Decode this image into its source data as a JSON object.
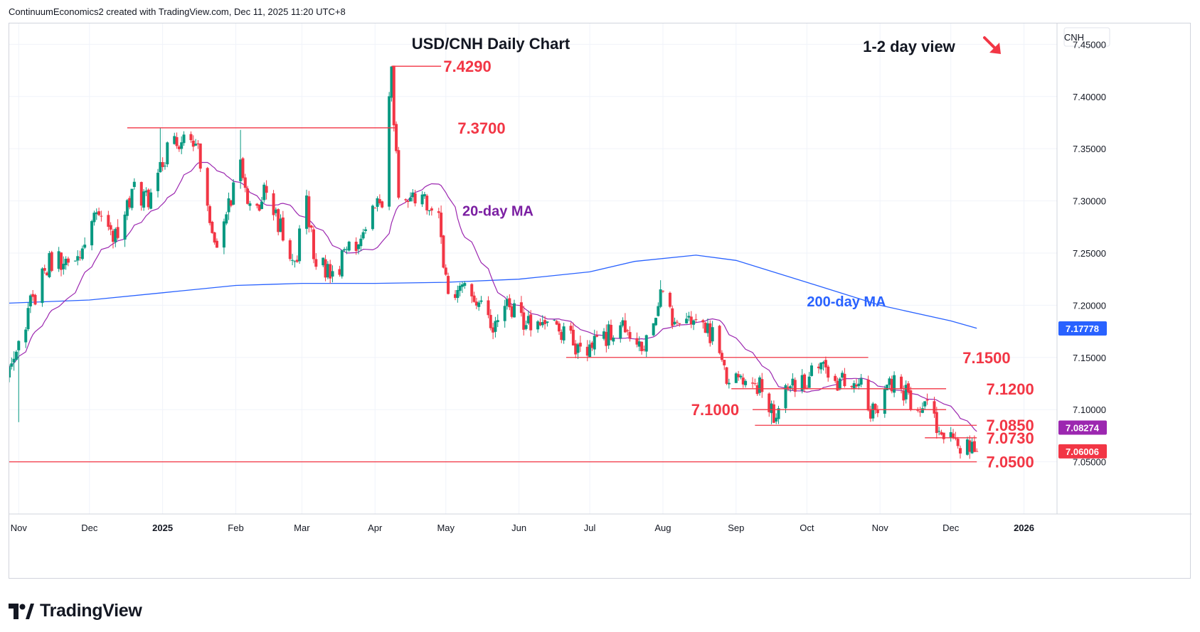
{
  "header": {
    "attribution": "ContinuumEconomics2 created with TradingView.com, Dec 11, 2025 11:20 UTC+8"
  },
  "brand": {
    "name": "TradingView"
  },
  "colors": {
    "up": "#089981",
    "down": "#f23645",
    "ma20": "#9c27b0",
    "ma200": "#2962ff",
    "level_line": "#f23645",
    "level_text": "#f23645",
    "annot_text": "#131722"
  },
  "chart_data": {
    "type": "candlestick",
    "title": "USD/CNH Daily Chart",
    "symbol": "CNH",
    "view_label": "1-2 day view",
    "view_direction": "down",
    "y_range": [
      7.0,
      7.47
    ],
    "x_range": [
      "2024-10-28",
      "2026-01-15"
    ],
    "y_ticks": [
      "7.45000",
      "7.40000",
      "7.35000",
      "7.30000",
      "7.25000",
      "7.20000",
      "7.15000",
      "7.10000",
      "7.05000"
    ],
    "x_ticks": [
      {
        "label": "Nov",
        "date": "2024-11-01"
      },
      {
        "label": "Dec",
        "date": "2024-12-01"
      },
      {
        "label": "2025",
        "date": "2025-01-01"
      },
      {
        "label": "Feb",
        "date": "2025-02-01"
      },
      {
        "label": "Mar",
        "date": "2025-03-01"
      },
      {
        "label": "Apr",
        "date": "2025-04-01"
      },
      {
        "label": "May",
        "date": "2025-05-01"
      },
      {
        "label": "Jun",
        "date": "2025-06-01"
      },
      {
        "label": "Jul",
        "date": "2025-07-01"
      },
      {
        "label": "Aug",
        "date": "2025-08-01"
      },
      {
        "label": "Sep",
        "date": "2025-09-01"
      },
      {
        "label": "Oct",
        "date": "2025-10-01"
      },
      {
        "label": "Nov",
        "date": "2025-11-01"
      },
      {
        "label": "Dec",
        "date": "2025-12-01"
      },
      {
        "label": "2026",
        "date": "2026-01-01"
      }
    ],
    "price_badges": [
      {
        "value": "7.17778",
        "color": "#2962ff"
      },
      {
        "value": "7.08274",
        "color": "#9c27b0"
      },
      {
        "value": "7.06006",
        "color": "#f23645"
      }
    ],
    "annotations": [
      {
        "text": "20-day MA",
        "date": "2025-05-08",
        "value": 7.29,
        "color": "#7b1fa2"
      },
      {
        "text": "200-day MA",
        "date": "2025-10-01",
        "value": 7.203,
        "color": "#2962ff"
      }
    ],
    "levels": [
      {
        "value": 7.429,
        "label": "7.4290",
        "from": "2025-04-08",
        "to": "2025-04-29",
        "label_date": "2025-04-30"
      },
      {
        "value": 7.37,
        "label": "7.3700",
        "from": "2024-12-17",
        "to": "2025-04-10",
        "label_date": "2025-05-06"
      },
      {
        "value": 7.15,
        "label": "7.1500",
        "from": "2025-06-21",
        "to": "2025-10-27",
        "label_date": "2025-12-06"
      },
      {
        "value": 7.12,
        "label": "7.1200",
        "from": "2025-08-30",
        "to": "2025-11-29",
        "label_date": "2025-12-16"
      },
      {
        "value": 7.1,
        "label": "7.1000",
        "from": "2025-09-08",
        "to": "2025-11-29",
        "label_date": "2025-08-13"
      },
      {
        "value": 7.085,
        "label": "7.0850",
        "from": "2025-09-09",
        "to": "2025-12-12",
        "label_date": "2025-12-16"
      },
      {
        "value": 7.073,
        "label": "7.0730",
        "from": "2025-11-20",
        "to": "2025-12-12",
        "label_date": "2025-12-16"
      },
      {
        "value": 7.05,
        "label": "7.0500",
        "from": "2024-10-28",
        "to": "2025-12-12",
        "label_date": "2025-12-16"
      }
    ],
    "anchors": [
      {
        "date": "2024-10-28",
        "value": 7.13
      },
      {
        "date": "2024-11-06",
        "value": 7.2
      },
      {
        "date": "2024-11-14",
        "value": 7.24
      },
      {
        "date": "2024-11-29",
        "value": 7.25
      },
      {
        "date": "2024-12-04",
        "value": 7.285
      },
      {
        "date": "2024-12-12",
        "value": 7.265
      },
      {
        "date": "2024-12-20",
        "value": 7.31
      },
      {
        "date": "2024-12-27",
        "value": 7.3
      },
      {
        "date": "2025-01-03",
        "value": 7.35
      },
      {
        "date": "2025-01-13",
        "value": 7.36
      },
      {
        "date": "2025-01-17",
        "value": 7.34
      },
      {
        "date": "2025-01-21",
        "value": 7.27
      },
      {
        "date": "2025-01-24",
        "value": 7.255
      },
      {
        "date": "2025-02-03",
        "value": 7.33
      },
      {
        "date": "2025-02-07",
        "value": 7.29
      },
      {
        "date": "2025-02-14",
        "value": 7.31
      },
      {
        "date": "2025-02-19",
        "value": 7.28
      },
      {
        "date": "2025-02-26",
        "value": 7.24
      },
      {
        "date": "2025-03-03",
        "value": 7.3
      },
      {
        "date": "2025-03-07",
        "value": 7.24
      },
      {
        "date": "2025-03-14",
        "value": 7.23
      },
      {
        "date": "2025-03-20",
        "value": 7.25
      },
      {
        "date": "2025-03-31",
        "value": 7.285
      },
      {
        "date": "2025-04-04",
        "value": 7.3
      },
      {
        "date": "2025-04-08",
        "value": 7.425
      },
      {
        "date": "2025-04-11",
        "value": 7.3
      },
      {
        "date": "2025-04-21",
        "value": 7.3
      },
      {
        "date": "2025-04-28",
        "value": 7.28
      },
      {
        "date": "2025-05-02",
        "value": 7.2
      },
      {
        "date": "2025-05-08",
        "value": 7.225
      },
      {
        "date": "2025-05-14",
        "value": 7.2
      },
      {
        "date": "2025-05-21",
        "value": 7.18
      },
      {
        "date": "2025-05-28",
        "value": 7.2
      },
      {
        "date": "2025-06-04",
        "value": 7.185
      },
      {
        "date": "2025-06-16",
        "value": 7.185
      },
      {
        "date": "2025-06-25",
        "value": 7.16
      },
      {
        "date": "2025-07-03",
        "value": 7.16
      },
      {
        "date": "2025-07-14",
        "value": 7.18
      },
      {
        "date": "2025-07-24",
        "value": 7.165
      },
      {
        "date": "2025-07-31",
        "value": 7.21
      },
      {
        "date": "2025-08-05",
        "value": 7.185
      },
      {
        "date": "2025-08-15",
        "value": 7.185
      },
      {
        "date": "2025-08-22",
        "value": 7.17
      },
      {
        "date": "2025-08-27",
        "value": 7.14
      },
      {
        "date": "2025-08-29",
        "value": 7.12
      },
      {
        "date": "2025-09-04",
        "value": 7.135
      },
      {
        "date": "2025-09-11",
        "value": 7.12
      },
      {
        "date": "2025-09-17",
        "value": 7.095
      },
      {
        "date": "2025-09-24",
        "value": 7.12
      },
      {
        "date": "2025-10-01",
        "value": 7.13
      },
      {
        "date": "2025-10-08",
        "value": 7.14
      },
      {
        "date": "2025-10-16",
        "value": 7.125
      },
      {
        "date": "2025-10-24",
        "value": 7.12
      },
      {
        "date": "2025-10-29",
        "value": 7.095
      },
      {
        "date": "2025-11-04",
        "value": 7.13
      },
      {
        "date": "2025-11-12",
        "value": 7.115
      },
      {
        "date": "2025-11-17",
        "value": 7.1
      },
      {
        "date": "2025-11-21",
        "value": 7.115
      },
      {
        "date": "2025-11-26",
        "value": 7.075
      },
      {
        "date": "2025-12-04",
        "value": 7.07
      },
      {
        "date": "2025-12-11",
        "value": 7.06
      },
      {
        "date": "2025-12-12",
        "value": 7.06
      }
    ],
    "ma200": [
      {
        "date": "2024-10-28",
        "value": 7.202
      },
      {
        "date": "2024-12-01",
        "value": 7.205
      },
      {
        "date": "2025-01-01",
        "value": 7.212
      },
      {
        "date": "2025-02-01",
        "value": 7.219
      },
      {
        "date": "2025-03-01",
        "value": 7.221
      },
      {
        "date": "2025-04-01",
        "value": 7.221
      },
      {
        "date": "2025-05-01",
        "value": 7.222
      },
      {
        "date": "2025-06-01",
        "value": 7.225
      },
      {
        "date": "2025-07-01",
        "value": 7.232
      },
      {
        "date": "2025-07-20",
        "value": 7.242
      },
      {
        "date": "2025-08-15",
        "value": 7.248
      },
      {
        "date": "2025-09-01",
        "value": 7.243
      },
      {
        "date": "2025-10-01",
        "value": 7.222
      },
      {
        "date": "2025-11-01",
        "value": 7.2
      },
      {
        "date": "2025-12-01",
        "value": 7.185
      },
      {
        "date": "2025-12-12",
        "value": 7.178
      }
    ]
  }
}
